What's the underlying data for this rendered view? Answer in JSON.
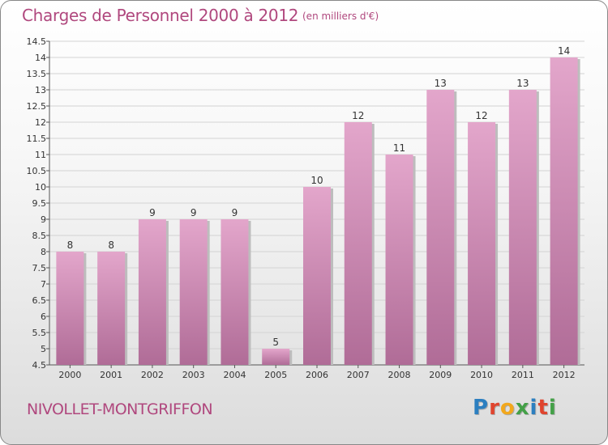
{
  "header": {
    "title": "Charges de Personnel 2000 à 2012",
    "subtitle": "(en milliers d'€)"
  },
  "footer": {
    "commune": "NIVOLLET-MONTGRIFFON",
    "logo_letters": [
      "P",
      "r",
      "o",
      "x",
      "i",
      "t",
      "i"
    ],
    "logo_colors": [
      "#2c7fc0",
      "#e0442e",
      "#f2a81d",
      "#43a047",
      "#2c7fc0",
      "#e0442e",
      "#43a047"
    ]
  },
  "chart_data": {
    "type": "bar",
    "categories": [
      "2000",
      "2001",
      "2002",
      "2003",
      "2004",
      "2005",
      "2006",
      "2007",
      "2008",
      "2009",
      "2010",
      "2011",
      "2012"
    ],
    "values": [
      8,
      8,
      9,
      9,
      9,
      5,
      10,
      12,
      11,
      13,
      12,
      13,
      14
    ],
    "data_labels": [
      "8",
      "8",
      "9",
      "9",
      "9",
      "5",
      "10",
      "12",
      "11",
      "13",
      "12",
      "13",
      "14"
    ],
    "ylim": [
      4.5,
      14.5
    ],
    "ytick_step": 0.5,
    "yticks": [
      "4.5",
      "5",
      "5.5",
      "6",
      "6.5",
      "7",
      "7.5",
      "8",
      "8.5",
      "9",
      "9.5",
      "10",
      "10.5",
      "11",
      "11.5",
      "12",
      "12.5",
      "13",
      "13.5",
      "14",
      "14.5"
    ],
    "grid": true,
    "bar_color_top": "#e3a6cb",
    "bar_color_bottom": "#b06c97"
  }
}
